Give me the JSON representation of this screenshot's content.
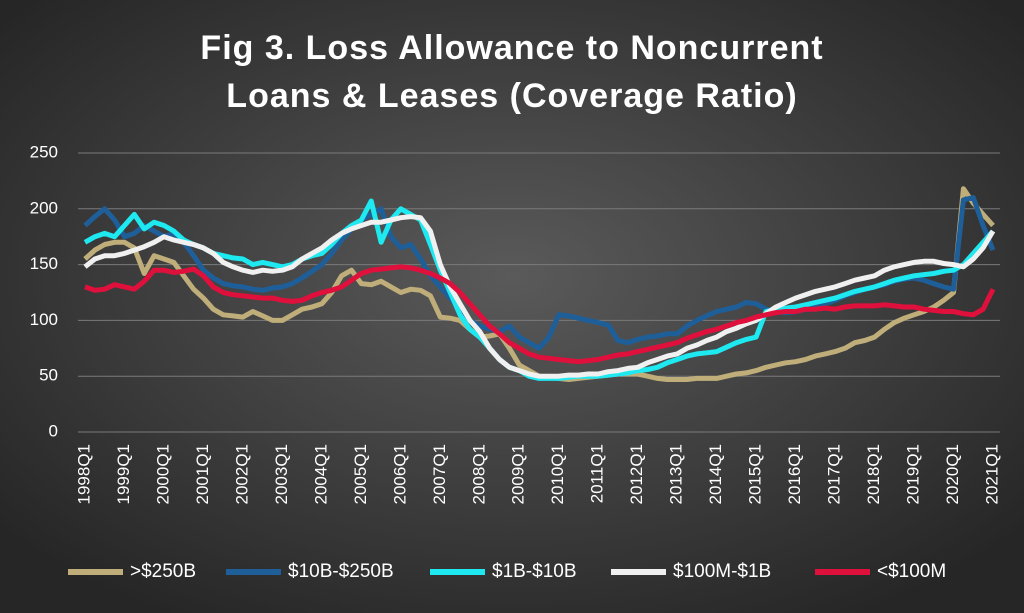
{
  "chart_data": {
    "type": "line",
    "title": [
      "Fig 3. Loss Allowance to Noncurrent",
      "Loans & Leases (Coverage Ratio)"
    ],
    "categories": [
      "1998Q1",
      null,
      null,
      null,
      "1999Q1",
      null,
      null,
      null,
      "2000Q1",
      null,
      null,
      null,
      "2001Q1",
      null,
      null,
      null,
      "2002Q1",
      null,
      null,
      null,
      "2003Q1",
      null,
      null,
      null,
      "2004Q1",
      null,
      null,
      null,
      "2005Q1",
      null,
      null,
      null,
      "2006Q1",
      null,
      null,
      null,
      "2007Q1",
      null,
      null,
      null,
      "2008Q1",
      null,
      null,
      null,
      "2009Q1",
      null,
      null,
      null,
      "2010Q1",
      null,
      null,
      null,
      "2011Q1",
      null,
      null,
      null,
      "2012Q1",
      null,
      null,
      null,
      "2013Q1",
      null,
      null,
      null,
      "2014Q1",
      null,
      null,
      null,
      "2015Q1",
      null,
      null,
      null,
      "2016Q1",
      null,
      null,
      null,
      "2017Q1",
      null,
      null,
      null,
      "2018Q1",
      null,
      null,
      null,
      "2019Q1",
      null,
      null,
      null,
      "2020Q1",
      null,
      null,
      null,
      "2021Q1"
    ],
    "series": [
      {
        "name": ">$250B",
        "color": "#bfae7a",
        "values": [
          155,
          163,
          168,
          170,
          170,
          165,
          142,
          158,
          155,
          152,
          140,
          128,
          120,
          110,
          105,
          104,
          103,
          108,
          104,
          100,
          100,
          105,
          110,
          112,
          115,
          125,
          140,
          145,
          133,
          132,
          135,
          130,
          125,
          128,
          127,
          122,
          103,
          102,
          100,
          92,
          85,
          86,
          88,
          75,
          60,
          55,
          50,
          49,
          48,
          47,
          48,
          49,
          50,
          51,
          52,
          52,
          52,
          50,
          48,
          47,
          47,
          47,
          48,
          48,
          48,
          50,
          52,
          53,
          55,
          58,
          60,
          62,
          63,
          65,
          68,
          70,
          72,
          75,
          80,
          82,
          85,
          92,
          98,
          102,
          105,
          108,
          112,
          118,
          125,
          218,
          205,
          195,
          185
        ]
      },
      {
        "name": "$10B-$250B",
        "color": "#1f5f99",
        "values": [
          185,
          193,
          200,
          190,
          175,
          178,
          185,
          180,
          175,
          178,
          170,
          158,
          145,
          138,
          133,
          131,
          130,
          128,
          127,
          129,
          130,
          133,
          138,
          144,
          150,
          160,
          172,
          182,
          190,
          195,
          200,
          175,
          165,
          168,
          155,
          140,
          130,
          120,
          110,
          100,
          95,
          92,
          90,
          95,
          85,
          80,
          75,
          85,
          105,
          104,
          102,
          100,
          98,
          96,
          82,
          80,
          83,
          85,
          86,
          88,
          88,
          95,
          100,
          104,
          108,
          110,
          112,
          116,
          115,
          110,
          108,
          107,
          108,
          110,
          112,
          115,
          118,
          122,
          125,
          128,
          130,
          132,
          135,
          137,
          138,
          136,
          133,
          130,
          128,
          208,
          210,
          185,
          163
        ]
      },
      {
        "name": "$1B-$10B",
        "color": "#1ee8f0",
        "values": [
          170,
          175,
          178,
          175,
          185,
          195,
          182,
          188,
          185,
          180,
          172,
          168,
          165,
          160,
          158,
          156,
          155,
          150,
          152,
          150,
          148,
          150,
          155,
          158,
          160,
          168,
          178,
          185,
          190,
          207,
          170,
          190,
          200,
          195,
          190,
          168,
          145,
          125,
          105,
          92,
          85,
          75,
          65,
          58,
          55,
          50,
          48,
          48,
          48,
          49,
          50,
          50,
          50,
          51,
          52,
          53,
          55,
          56,
          58,
          62,
          65,
          68,
          70,
          71,
          72,
          76,
          80,
          83,
          85,
          108,
          110,
          111,
          112,
          114,
          116,
          118,
          120,
          123,
          126,
          128,
          130,
          133,
          136,
          138,
          140,
          141,
          142,
          144,
          145,
          150,
          160,
          170,
          180
        ]
      },
      {
        "name": "$100M-$1B",
        "color": "#f0f0f0",
        "values": [
          148,
          155,
          158,
          158,
          160,
          163,
          166,
          170,
          175,
          172,
          170,
          168,
          165,
          160,
          152,
          148,
          145,
          143,
          145,
          144,
          145,
          148,
          155,
          160,
          165,
          172,
          178,
          182,
          185,
          188,
          188,
          190,
          192,
          193,
          192,
          180,
          150,
          130,
          115,
          100,
          90,
          75,
          65,
          58,
          55,
          52,
          50,
          50,
          50,
          51,
          51,
          52,
          52,
          54,
          55,
          57,
          58,
          62,
          65,
          68,
          70,
          75,
          78,
          82,
          85,
          90,
          93,
          97,
          100,
          106,
          112,
          116,
          120,
          123,
          126,
          128,
          130,
          133,
          136,
          138,
          140,
          145,
          148,
          150,
          152,
          153,
          153,
          151,
          150,
          148,
          155,
          165,
          180
        ]
      },
      {
        "name": "<$100M",
        "color": "#e0103c",
        "values": [
          130,
          127,
          128,
          132,
          130,
          128,
          135,
          145,
          145,
          143,
          144,
          146,
          140,
          130,
          125,
          123,
          122,
          121,
          120,
          120,
          118,
          117,
          118,
          122,
          125,
          127,
          130,
          136,
          142,
          145,
          146,
          147,
          148,
          147,
          145,
          142,
          138,
          133,
          125,
          115,
          105,
          95,
          88,
          80,
          75,
          70,
          67,
          66,
          65,
          64,
          63,
          64,
          65,
          67,
          69,
          70,
          72,
          74,
          76,
          78,
          80,
          84,
          87,
          90,
          92,
          95,
          98,
          100,
          103,
          105,
          107,
          108,
          108,
          110,
          110,
          111,
          110,
          112,
          113,
          113,
          113,
          114,
          113,
          112,
          112,
          110,
          109,
          108,
          108,
          106,
          105,
          110,
          128
        ]
      }
    ],
    "ylim": [
      0,
      250
    ],
    "yticks": [
      0,
      50,
      100,
      150,
      200,
      250
    ],
    "grid": true,
    "legend": "bottom"
  }
}
